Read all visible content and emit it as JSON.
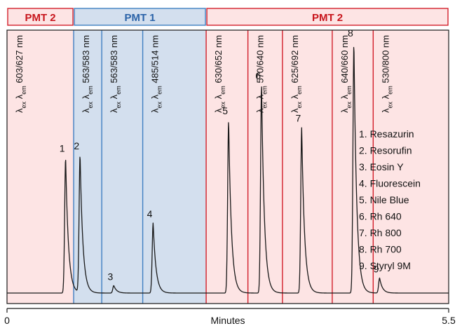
{
  "colors": {
    "pmt1_fill": "#d3dfee",
    "pmt1_stroke": "#3f7fc1",
    "pmt1_text": "#2b63a8",
    "pmt2_fill": "#fde4e4",
    "pmt2_stroke": "#d21f2a",
    "pmt2_text": "#c8161d",
    "trace": "#1a1a1a"
  },
  "chart_data": {
    "type": "line",
    "xlabel": "Minutes",
    "xlim": [
      0,
      5.5
    ],
    "x_tick_labels": [
      "0",
      "5.5"
    ],
    "detector_bands": [
      {
        "label": "PMT 2",
        "x_start": 0.0,
        "x_end": 0.83,
        "detector": "pmt2"
      },
      {
        "label": "PMT 1",
        "x_start": 0.83,
        "x_end": 2.48,
        "detector": "pmt1"
      },
      {
        "label": "PMT 2",
        "x_start": 2.48,
        "x_end": 5.5,
        "detector": "pmt2"
      }
    ],
    "wavelength_programs": [
      {
        "x_start": 0.0,
        "x_end": 0.83,
        "text": "603/627 nm",
        "detector": "pmt2"
      },
      {
        "x_start": 0.83,
        "x_end": 1.18,
        "text": "563/583 nm",
        "detector": "pmt1"
      },
      {
        "x_start": 1.18,
        "x_end": 1.69,
        "text": "563/583 nm",
        "detector": "pmt1"
      },
      {
        "x_start": 1.69,
        "x_end": 2.48,
        "text": "485/514 nm",
        "detector": "pmt1"
      },
      {
        "x_start": 2.48,
        "x_end": 3.0,
        "text": "630/652 nm",
        "detector": "pmt2"
      },
      {
        "x_start": 3.0,
        "x_end": 3.43,
        "text": "570/640 nm",
        "detector": "pmt2"
      },
      {
        "x_start": 3.43,
        "x_end": 4.05,
        "text": "625/692 nm",
        "detector": "pmt2"
      },
      {
        "x_start": 4.05,
        "x_end": 4.56,
        "text": "640/660 nm",
        "detector": "pmt2"
      },
      {
        "x_start": 4.56,
        "x_end": 5.5,
        "text": "530/800 nm",
        "detector": "pmt2"
      }
    ],
    "lambda_label": {
      "symbol": "λ",
      "ex": "ex",
      "em": "em"
    },
    "peaks": [
      {
        "label": "1",
        "x": 0.73,
        "height": 0.54,
        "compound": "Resazurin"
      },
      {
        "label": "2",
        "x": 0.91,
        "height": 0.55,
        "compound": "Resorufin"
      },
      {
        "label": "3",
        "x": 1.33,
        "height": 0.03,
        "compound": "Eosin Y"
      },
      {
        "label": "4",
        "x": 1.82,
        "height": 0.28,
        "compound": "Fluorescein"
      },
      {
        "label": "5",
        "x": 2.76,
        "height": 0.69,
        "compound": "Nile Blue"
      },
      {
        "label": "6",
        "x": 3.17,
        "height": 0.83,
        "compound": "Rh 640"
      },
      {
        "label": "7",
        "x": 3.67,
        "height": 0.66,
        "compound": "Rh 800"
      },
      {
        "label": "8",
        "x": 4.32,
        "height": 1.0,
        "compound": "Rh 700"
      },
      {
        "label": "9",
        "x": 4.64,
        "height": 0.06,
        "compound": "Styryl 9M"
      }
    ],
    "legend": [
      "1. Resazurin",
      "2. Resorufin",
      "3. Eosin Y",
      "4. Fluorescein",
      "5. Nile Blue",
      "6. Rh 640",
      "7. Rh 800",
      "8. Rh 700",
      "9. Styryl 9M"
    ],
    "legend_position": "right",
    "grid": false
  }
}
